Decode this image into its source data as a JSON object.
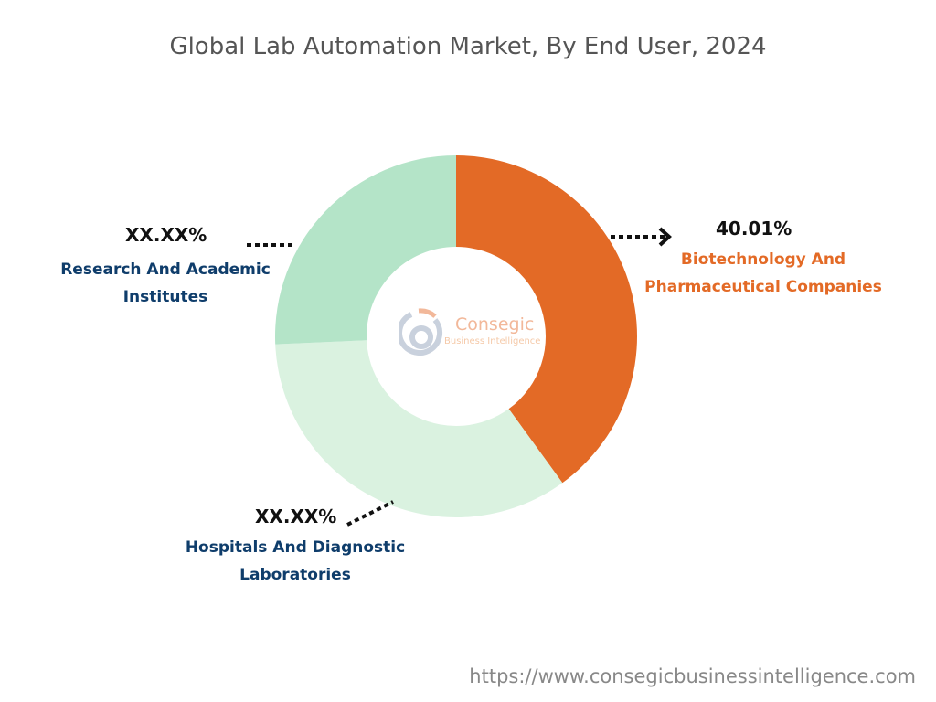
{
  "chart_data": {
    "type": "pie",
    "subtype": "donut",
    "title": "Global Lab Automation Market, By End User, 2024",
    "categories": [
      "Biotechnology And Pharmaceutical Companies",
      "Hospitals And Diagnostic Laboratories",
      "Research And Academic Institutes"
    ],
    "values": [
      40.01,
      34.3,
      25.7
    ],
    "value_labels": [
      "40.01%",
      "XX.XX%",
      "XX.XX%"
    ],
    "colors": [
      "#E36A26",
      "#DAF2E0",
      "#B4E4C8"
    ],
    "label_colors": [
      "#E36A26",
      "#0F3D6B",
      "#0F3D6B"
    ],
    "start": "top",
    "direction": "clockwise"
  },
  "logo": {
    "name": "Consegic",
    "tagline": "Business Intelligence"
  },
  "footer": {
    "url": "https://www.consegicbusinessintelligence.com"
  }
}
